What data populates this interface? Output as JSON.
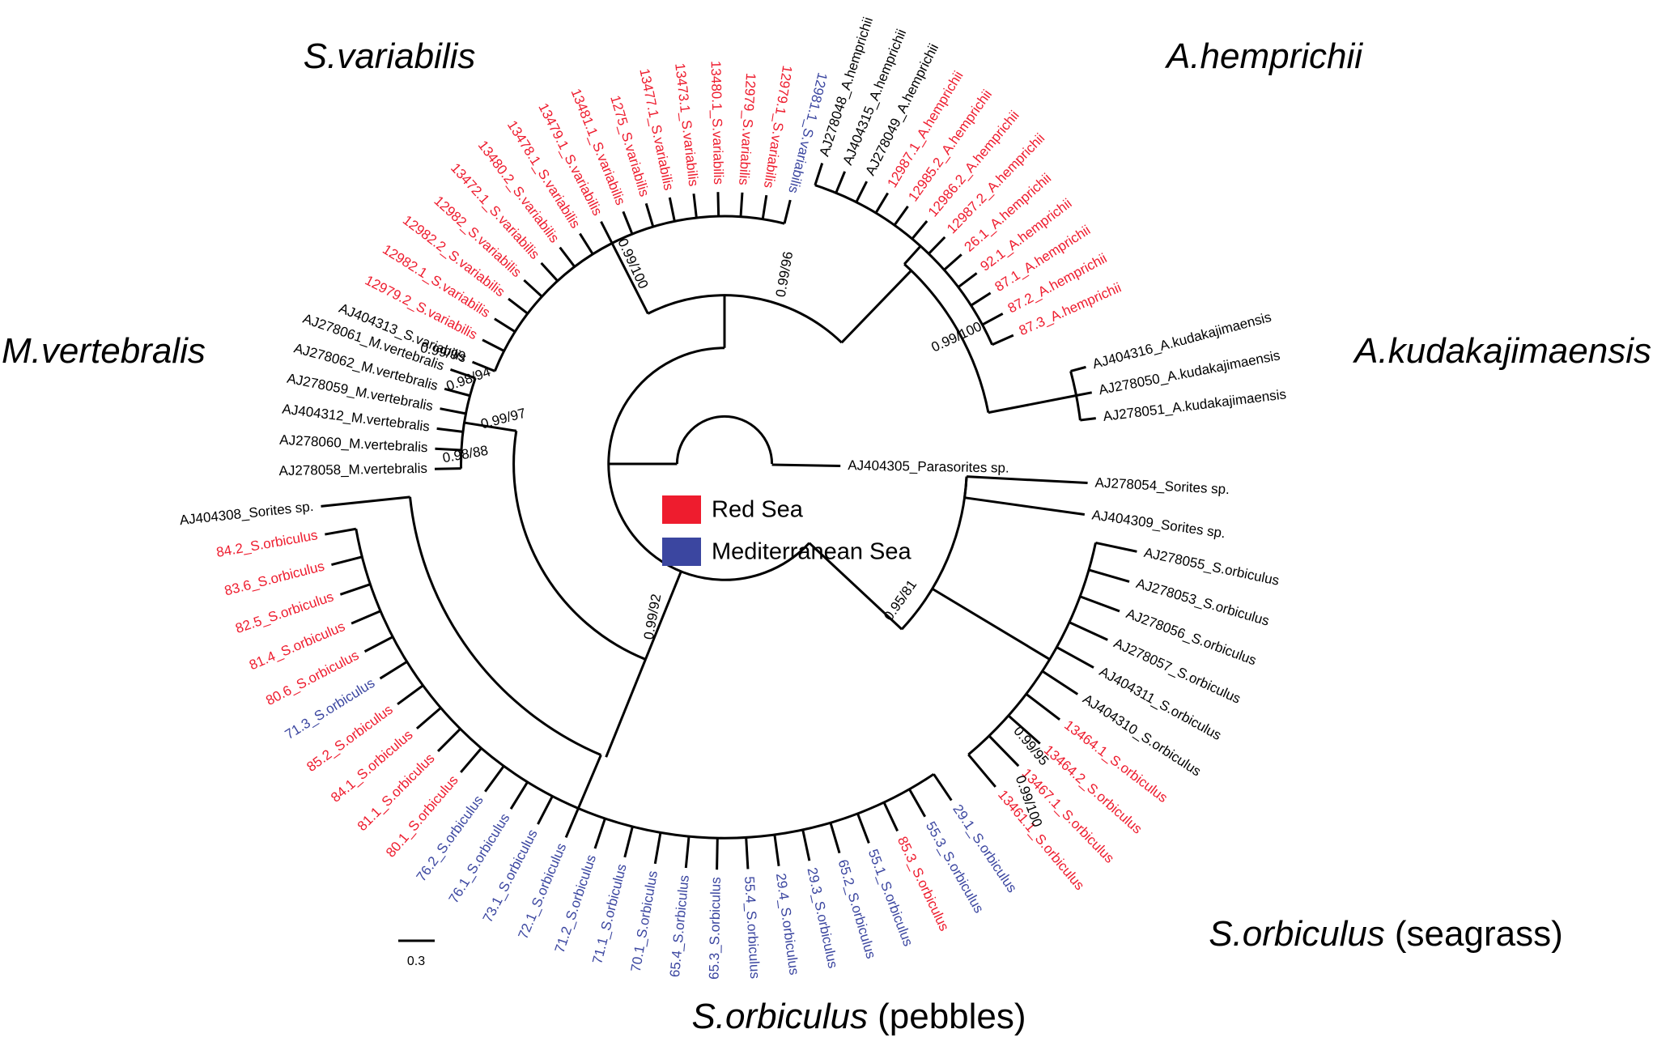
{
  "groups": [
    {
      "title": {
        "name": "S.variabilis"
      },
      "leaves": [
        {
          "label": "AJ404313_S.variabilis",
          "color": "#000000"
        },
        {
          "label": "12979.2_S.variabilis",
          "color": "#ee1c2e"
        },
        {
          "label": "12982.1_S.variabilis",
          "color": "#ee1c2e"
        },
        {
          "label": "12982.2_S.variabilis",
          "color": "#ee1c2e"
        },
        {
          "label": "12982_S.variabilis",
          "color": "#ee1c2e"
        },
        {
          "label": "13472.1_S.variabilis",
          "color": "#ee1c2e"
        },
        {
          "label": "13480.2_S.variabilis",
          "color": "#ee1c2e"
        },
        {
          "label": "13478.1_S.variabilis",
          "color": "#ee1c2e"
        },
        {
          "label": "13479.1_S.variabilis",
          "color": "#ee1c2e"
        },
        {
          "label": "13481.1_S.variabilis",
          "color": "#ee1c2e"
        },
        {
          "label": "1275_S.variabilis",
          "color": "#ee1c2e"
        },
        {
          "label": "13477.1_S.variabilis",
          "color": "#ee1c2e"
        },
        {
          "label": "13473.1_S.variabilis",
          "color": "#ee1c2e"
        },
        {
          "label": "13480.1_S.variabilis",
          "color": "#ee1c2e"
        },
        {
          "label": "12979_S.variabilis",
          "color": "#ee1c2e"
        },
        {
          "label": "12979.1_S.variabilis",
          "color": "#ee1c2e"
        },
        {
          "label": "12981.1_S.variabilis",
          "color": "#3b46a0"
        }
      ]
    },
    {
      "title": {
        "name": "A.hemprichii"
      },
      "leaves": [
        {
          "label": "AJ278048_A.hemprichii",
          "color": "#000000"
        },
        {
          "label": "AJ404315_A.hemprichii",
          "color": "#000000"
        },
        {
          "label": "AJ278049_A.hemprichii",
          "color": "#000000"
        },
        {
          "label": "12987.1_A.hemprichii",
          "color": "#ee1c2e"
        },
        {
          "label": "12985.2_A.hemprichii",
          "color": "#ee1c2e"
        },
        {
          "label": "12986.2_A.hemprichii",
          "color": "#ee1c2e"
        },
        {
          "label": "12987.2_A.hemprichii",
          "color": "#ee1c2e"
        },
        {
          "label": "26.1_A.hemprichii",
          "color": "#ee1c2e"
        },
        {
          "label": "92.1_A.hemprichii",
          "color": "#ee1c2e"
        },
        {
          "label": "87.1_A.hemprichii",
          "color": "#ee1c2e"
        },
        {
          "label": "87.2_A.hemprichii",
          "color": "#ee1c2e"
        },
        {
          "label": "87.3_A.hemprichii",
          "color": "#ee1c2e"
        }
      ]
    },
    {
      "title": {
        "name": "A.kudakajimaensis"
      },
      "leaves": [
        {
          "label": "AJ404316_A.kudakajimaensis",
          "color": "#000000"
        },
        {
          "label": "AJ278050_A.kudakajimaensis",
          "color": "#000000"
        },
        {
          "label": "AJ278051_A.kudakajimaensis",
          "color": "#000000"
        }
      ]
    },
    {
      "leaves": [
        {
          "label": "AJ404305_Parasorites sp.",
          "color": "#000000"
        }
      ]
    },
    {
      "leaves": [
        {
          "label": "AJ278054_Sorites sp.",
          "color": "#000000"
        },
        {
          "label": "AJ404309_Sorites sp.",
          "color": "#000000"
        }
      ]
    },
    {
      "title": {
        "name": "S.orbiculus",
        "habitat": "(seagrass)"
      },
      "leaves": [
        {
          "label": "AJ278055_S.orbiculus",
          "color": "#000000"
        },
        {
          "label": "AJ278053_S.orbiculus",
          "color": "#000000"
        },
        {
          "label": "AJ278056_S.orbiculus",
          "color": "#000000"
        },
        {
          "label": "AJ278057_S.orbiculus",
          "color": "#000000"
        },
        {
          "label": "AJ404311_S.orbiculus",
          "color": "#000000"
        },
        {
          "label": "AJ404310_S.orbiculus",
          "color": "#000000"
        },
        {
          "label": "13464.1_S.orbiculus",
          "color": "#ee1c2e"
        },
        {
          "label": "13464.2_S.orbiculus",
          "color": "#ee1c2e"
        },
        {
          "label": "13467.1_S.orbiculus",
          "color": "#ee1c2e"
        },
        {
          "label": "13461.1_S.orbiculus",
          "color": "#ee1c2e"
        }
      ]
    },
    {
      "title": {
        "name": "S.orbiculus",
        "habitat": "(pebbles)"
      },
      "leaves": [
        {
          "label": "29.1_S.orbiculus",
          "color": "#3b46a0"
        },
        {
          "label": "55.3_S.orbiculus",
          "color": "#3b46a0"
        },
        {
          "label": "85.3_S.orbiculus",
          "color": "#ee1c2e"
        },
        {
          "label": "55.1_S.orbiculus",
          "color": "#3b46a0"
        },
        {
          "label": "65.2_S.orbiculus",
          "color": "#3b46a0"
        },
        {
          "label": "29.3_S.orbiculus",
          "color": "#3b46a0"
        },
        {
          "label": "29.4_S.orbiculus",
          "color": "#3b46a0"
        },
        {
          "label": "55.4_S.orbiculus",
          "color": "#3b46a0"
        },
        {
          "label": "65.3_S.orbiculus",
          "color": "#3b46a0"
        },
        {
          "label": "65.4_S.orbiculus",
          "color": "#3b46a0"
        },
        {
          "label": "70.1_S.orbiculus",
          "color": "#3b46a0"
        },
        {
          "label": "71.1_S.orbiculus",
          "color": "#3b46a0"
        },
        {
          "label": "71.2_S.orbiculus",
          "color": "#3b46a0"
        },
        {
          "label": "72.1_S.orbiculus",
          "color": "#3b46a0"
        },
        {
          "label": "73.1_S.orbiculus",
          "color": "#3b46a0"
        },
        {
          "label": "76.1_S.orbiculus",
          "color": "#3b46a0"
        },
        {
          "label": "76.2_S.orbiculus",
          "color": "#3b46a0"
        },
        {
          "label": "80.1_S.orbiculus",
          "color": "#ee1c2e"
        },
        {
          "label": "81.1_S.orbiculus",
          "color": "#ee1c2e"
        },
        {
          "label": "84.1_S.orbiculus",
          "color": "#ee1c2e"
        },
        {
          "label": "85.2_S.orbiculus",
          "color": "#ee1c2e"
        },
        {
          "label": "71.3_S.orbiculus",
          "color": "#3b46a0"
        },
        {
          "label": "80.6_S.orbiculus",
          "color": "#ee1c2e"
        },
        {
          "label": "81.4_S.orbiculus",
          "color": "#ee1c2e"
        },
        {
          "label": "82.5_S.orbiculus",
          "color": "#ee1c2e"
        },
        {
          "label": "83.6_S.orbiculus",
          "color": "#ee1c2e"
        },
        {
          "label": "84.2_S.orbiculus",
          "color": "#ee1c2e"
        }
      ]
    },
    {
      "leaves": [
        {
          "label": "AJ404308_Sorites sp.",
          "color": "#000000"
        }
      ]
    },
    {
      "title": {
        "name": "M.vertebralis"
      },
      "leaves": [
        {
          "label": "AJ278058_M.vertebralis",
          "color": "#000000"
        },
        {
          "label": "AJ278060_M.vertebralis",
          "color": "#000000"
        },
        {
          "label": "AJ404312_M.vertebralis",
          "color": "#000000"
        },
        {
          "label": "AJ278059_M.vertebralis",
          "color": "#000000"
        },
        {
          "label": "AJ278062_M.vertebralis",
          "color": "#000000"
        },
        {
          "label": "AJ278061_M.vertebralis",
          "color": "#000000"
        }
      ]
    }
  ],
  "supports": [
    "0.99/100",
    "0.99/96",
    "0.99/100",
    "0.99/99",
    "0.98/94",
    "0.99/97",
    "0.98/88",
    "0.99/92",
    "0.95/81",
    "0.99/95",
    "0.99/100"
  ],
  "legend": [
    {
      "label": "Red Sea",
      "color": "#ee1c2e"
    },
    {
      "label": "Mediterranean Sea",
      "color": "#3b46a0"
    }
  ],
  "scale_bar": "0.3"
}
